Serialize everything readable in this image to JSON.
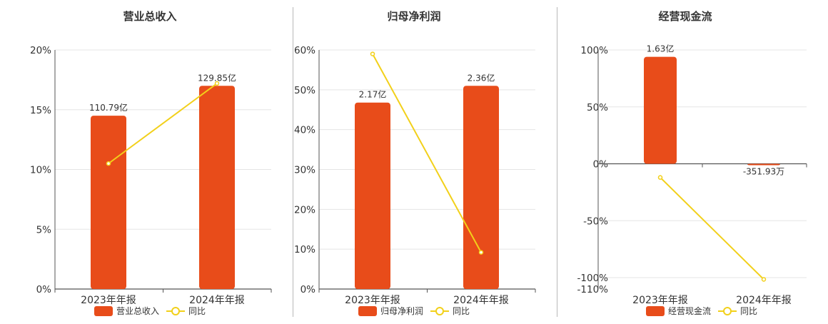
{
  "colors": {
    "bar": "#e84c1a",
    "line": "#f2d01a",
    "axis": "#555555",
    "grid": "#e5e5e5",
    "text": "#333333"
  },
  "legend": {
    "line_label": "同比"
  },
  "charts": [
    {
      "title": "营业总收入",
      "bar_legend": "营业总收入",
      "chart_data": {
        "type": "bar",
        "categories": [
          "2023年年报",
          "2024年年报"
        ],
        "bar_labels": [
          "110.79亿",
          "129.85亿"
        ],
        "bar_axis_values": [
          14.5,
          17.0
        ],
        "series": [
          {
            "name": "同比",
            "type": "line",
            "values": [
              10.5,
              17.2
            ]
          }
        ],
        "yticks": [
          "0%",
          "5%",
          "10%",
          "15%",
          "20%"
        ],
        "ylim": [
          0,
          20
        ],
        "grid": true,
        "legend": "bottom"
      }
    },
    {
      "title": "归母净利润",
      "bar_legend": "归母净利润",
      "chart_data": {
        "type": "bar",
        "categories": [
          "2023年年报",
          "2024年年报"
        ],
        "bar_labels": [
          "2.17亿",
          "2.36亿"
        ],
        "bar_axis_values": [
          46.8,
          51.0
        ],
        "series": [
          {
            "name": "同比",
            "type": "line",
            "values": [
              59.0,
              9.2
            ]
          }
        ],
        "yticks": [
          "0%",
          "10%",
          "20%",
          "30%",
          "40%",
          "50%",
          "60%"
        ],
        "ylim": [
          0,
          60
        ],
        "grid": true,
        "legend": "bottom"
      }
    },
    {
      "title": "经营现金流",
      "bar_legend": "经营现金流",
      "chart_data": {
        "type": "bar",
        "categories": [
          "2023年年报",
          "2024年年报"
        ],
        "bar_labels": [
          "1.63亿",
          "-351.93万"
        ],
        "bar_axis_values": [
          94,
          -1
        ],
        "series": [
          {
            "name": "同比",
            "type": "line",
            "values": [
              -12,
              -101.5
            ]
          }
        ],
        "yticks": [
          "-110%",
          "-100%",
          "-50%",
          "0%",
          "50%",
          "100%"
        ],
        "ylim": [
          -110,
          100
        ],
        "grid": true,
        "legend": "bottom"
      }
    }
  ]
}
